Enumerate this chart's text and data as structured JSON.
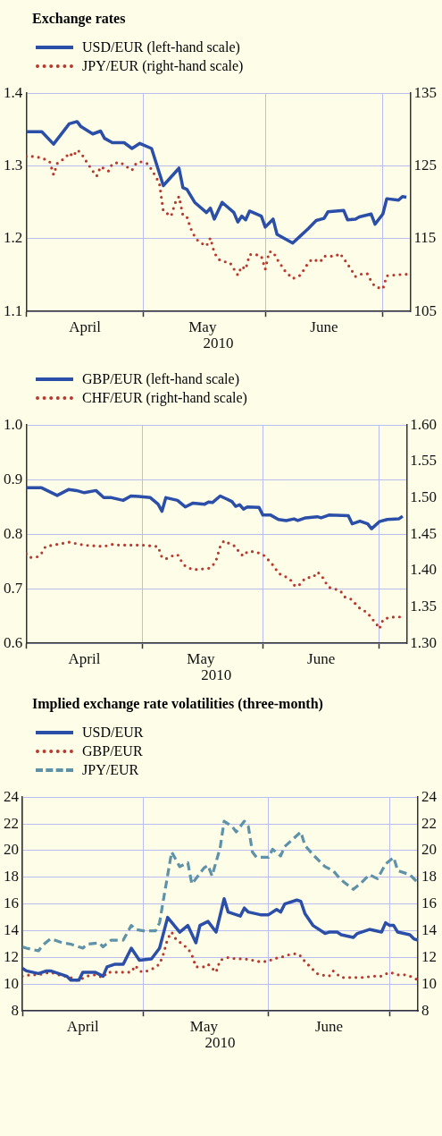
{
  "chart_data": [
    {
      "type": "line",
      "title": "Exchange rates",
      "xlabel": "2010",
      "legend": "top left",
      "grid": true,
      "xlim": [
        "2010-04-01",
        "2010-07-08"
      ],
      "xticks": [
        {
          "value": "2010-04-01",
          "label": null
        },
        {
          "value": "2010-04-16",
          "label": "April"
        },
        {
          "value": "2010-05-01",
          "label": null
        },
        {
          "value": "2010-05-16",
          "label": "May"
        },
        {
          "value": "2010-06-01",
          "label": null
        },
        {
          "value": "2010-06-16",
          "label": "June"
        },
        {
          "value": "2010-07-01",
          "label": null
        }
      ],
      "ylim": [
        1.1,
        1.4
      ],
      "yticks": [
        1.1,
        1.2,
        1.3,
        1.4
      ],
      "y2lim": [
        105,
        135
      ],
      "y2ticks": [
        105,
        115,
        125,
        135
      ],
      "series": [
        {
          "name": "USD/EUR (left-hand scale)",
          "color": "#2b4fa8",
          "line_style": "solid",
          "x": [
            "2010-04-01",
            "2010-04-05",
            "2010-04-08",
            "2010-04-12",
            "2010-04-14",
            "2010-04-15",
            "2010-04-18",
            "2010-04-20",
            "2010-04-21",
            "2010-04-23",
            "2010-04-26",
            "2010-04-28",
            "2010-04-30",
            "2010-05-03",
            "2010-05-06",
            "2010-05-10",
            "2010-05-11",
            "2010-05-12",
            "2010-05-14",
            "2010-05-17",
            "2010-05-18",
            "2010-05-19",
            "2010-05-21",
            "2010-05-24",
            "2010-05-25",
            "2010-05-26",
            "2010-05-27",
            "2010-05-28",
            "2010-05-31",
            "2010-06-01",
            "2010-06-03",
            "2010-06-04",
            "2010-06-08",
            "2010-06-10",
            "2010-06-12",
            "2010-06-14",
            "2010-06-16",
            "2010-06-17",
            "2010-06-21",
            "2010-06-22",
            "2010-06-24",
            "2010-06-25",
            "2010-06-28",
            "2010-06-29",
            "2010-07-01",
            "2010-07-02",
            "2010-07-05",
            "2010-07-06",
            "2010-07-07"
          ],
          "values": [
            1.347,
            1.347,
            1.33,
            1.358,
            1.361,
            1.354,
            1.344,
            1.348,
            1.338,
            1.332,
            1.332,
            1.324,
            1.331,
            1.324,
            1.273,
            1.297,
            1.27,
            1.268,
            1.25,
            1.236,
            1.242,
            1.227,
            1.25,
            1.236,
            1.223,
            1.231,
            1.226,
            1.238,
            1.231,
            1.216,
            1.227,
            1.206,
            1.194,
            1.204,
            1.214,
            1.225,
            1.228,
            1.237,
            1.239,
            1.226,
            1.227,
            1.23,
            1.234,
            1.22,
            1.234,
            1.255,
            1.253,
            1.258,
            1.257
          ]
        },
        {
          "name": "JPY/EUR (right-hand scale)",
          "color": "#b8392e",
          "line_style": "dotted",
          "axis": "y2",
          "x": [
            "2010-04-01",
            "2010-04-03",
            "2010-04-05",
            "2010-04-07",
            "2010-04-08",
            "2010-04-09",
            "2010-04-11",
            "2010-04-12",
            "2010-04-13",
            "2010-04-14",
            "2010-04-15",
            "2010-04-16",
            "2010-04-17",
            "2010-04-18",
            "2010-04-19",
            "2010-04-20",
            "2010-04-22",
            "2010-04-23",
            "2010-04-25",
            "2010-04-28",
            "2010-04-29",
            "2010-04-30",
            "2010-05-02",
            "2010-05-03",
            "2010-05-04",
            "2010-05-05",
            "2010-05-06",
            "2010-05-08",
            "2010-05-09",
            "2010-05-10",
            "2010-05-11",
            "2010-05-12",
            "2010-05-13",
            "2010-05-14",
            "2010-05-15",
            "2010-05-17",
            "2010-05-18",
            "2010-05-19",
            "2010-05-20",
            "2010-05-21",
            "2010-05-23",
            "2010-05-25",
            "2010-05-26",
            "2010-05-27",
            "2010-05-28",
            "2010-05-29",
            "2010-05-31",
            "2010-06-01",
            "2010-06-02",
            "2010-06-03",
            "2010-06-04",
            "2010-06-06",
            "2010-06-08",
            "2010-06-10",
            "2010-06-12",
            "2010-06-13",
            "2010-06-15",
            "2010-06-16",
            "2010-06-19",
            "2010-06-20",
            "2010-06-21",
            "2010-06-23",
            "2010-06-24",
            "2010-06-25",
            "2010-06-27",
            "2010-06-28",
            "2010-06-29",
            "2010-07-01",
            "2010-07-02",
            "2010-07-04",
            "2010-07-06",
            "2010-07-07"
          ],
          "values": [
            126.3,
            126.3,
            126.1,
            125.6,
            123.8,
            125.4,
            126.1,
            126.8,
            126.3,
            127.2,
            126.8,
            125.9,
            125.1,
            124.3,
            123.6,
            124.9,
            124.3,
            125.3,
            125.5,
            124.4,
            125.3,
            125.6,
            125.3,
            124.5,
            123.6,
            122.6,
            118.8,
            118.1,
            119.9,
            120.8,
            118.2,
            118.0,
            116.4,
            115.3,
            114.6,
            114.0,
            115.1,
            113.1,
            112.2,
            111.9,
            111.7,
            110.0,
            111.2,
            110.8,
            112.8,
            112.9,
            112.6,
            110.8,
            113.2,
            113.2,
            112.2,
            110.6,
            109.5,
            110.0,
            111.7,
            112.2,
            111.8,
            112.6,
            112.6,
            113.0,
            112.3,
            110.7,
            109.8,
            110.1,
            110.2,
            109.2,
            108.4,
            108.1,
            109.9,
            110.0,
            110.1,
            110.1
          ]
        }
      ]
    },
    {
      "type": "line",
      "xlabel": "2010",
      "legend": "top left",
      "grid": true,
      "xlim": [
        "2010-04-01",
        "2010-07-08"
      ],
      "xticks": [
        {
          "value": "2010-04-01",
          "label": null
        },
        {
          "value": "2010-04-16",
          "label": "April"
        },
        {
          "value": "2010-05-01",
          "label": null
        },
        {
          "value": "2010-05-16",
          "label": "May"
        },
        {
          "value": "2010-06-01",
          "label": null
        },
        {
          "value": "2010-06-16",
          "label": "June"
        },
        {
          "value": "2010-07-01",
          "label": null
        }
      ],
      "ylim": [
        0.6,
        1.0
      ],
      "yticks": [
        0.6,
        0.7,
        0.8,
        0.9,
        {
          "value": 1.0,
          "label": "1.0"
        }
      ],
      "y2lim": [
        1.3,
        1.6
      ],
      "y2ticks": [
        {
          "value": 1.3,
          "label": "1.30"
        },
        {
          "value": 1.35,
          "label": "1.35"
        },
        {
          "value": 1.4,
          "label": "1.40"
        },
        {
          "value": 1.45,
          "label": "1.45"
        },
        {
          "value": 1.5,
          "label": "1.50"
        },
        {
          "value": 1.55,
          "label": "1.55"
        },
        {
          "value": 1.6,
          "label": "1.60"
        }
      ],
      "series": [
        {
          "name": "GBP/EUR (left-hand scale)",
          "color": "#2b4fa8",
          "line_style": "solid",
          "x": [
            "2010-04-01",
            "2010-04-05",
            "2010-04-09",
            "2010-04-12",
            "2010-04-14",
            "2010-04-16",
            "2010-04-19",
            "2010-04-21",
            "2010-04-23",
            "2010-04-26",
            "2010-04-28",
            "2010-04-30",
            "2010-05-03",
            "2010-05-05",
            "2010-05-06",
            "2010-05-07",
            "2010-05-10",
            "2010-05-12",
            "2010-05-14",
            "2010-05-17",
            "2010-05-18",
            "2010-05-19",
            "2010-05-21",
            "2010-05-24",
            "2010-05-25",
            "2010-05-26",
            "2010-05-27",
            "2010-05-28",
            "2010-05-31",
            "2010-06-01",
            "2010-06-03",
            "2010-06-05",
            "2010-06-07",
            "2010-06-09",
            "2010-06-10",
            "2010-06-12",
            "2010-06-15",
            "2010-06-16",
            "2010-06-18",
            "2010-06-23",
            "2010-06-24",
            "2010-06-26",
            "2010-06-28",
            "2010-06-29",
            "2010-07-01",
            "2010-07-03",
            "2010-07-06",
            "2010-07-07"
          ],
          "values": [
            0.885,
            0.885,
            0.871,
            0.882,
            0.88,
            0.876,
            0.88,
            0.867,
            0.867,
            0.862,
            0.87,
            0.869,
            0.867,
            0.855,
            0.842,
            0.867,
            0.862,
            0.85,
            0.857,
            0.855,
            0.859,
            0.858,
            0.87,
            0.86,
            0.851,
            0.854,
            0.846,
            0.85,
            0.849,
            0.835,
            0.835,
            0.827,
            0.825,
            0.828,
            0.825,
            0.83,
            0.832,
            0.83,
            0.835,
            0.834,
            0.819,
            0.824,
            0.819,
            0.81,
            0.823,
            0.827,
            0.828,
            0.833
          ]
        },
        {
          "name": "CHF/EUR (right-hand scale)",
          "color": "#b8392e",
          "line_style": "dotted",
          "axis": "y2",
          "x": [
            "2010-04-01",
            "2010-04-02",
            "2010-04-04",
            "2010-04-05",
            "2010-04-06",
            "2010-04-08",
            "2010-04-10",
            "2010-04-12",
            "2010-04-14",
            "2010-04-16",
            "2010-04-18",
            "2010-04-19",
            "2010-04-21",
            "2010-04-23",
            "2010-04-25",
            "2010-04-27",
            "2010-04-29",
            "2010-05-01",
            "2010-05-03",
            "2010-05-05",
            "2010-05-06",
            "2010-05-07",
            "2010-05-09",
            "2010-05-10",
            "2010-05-11",
            "2010-05-12",
            "2010-05-14",
            "2010-05-16",
            "2010-05-18",
            "2010-05-19",
            "2010-05-20",
            "2010-05-21",
            "2010-05-22",
            "2010-05-23",
            "2010-05-25",
            "2010-05-26",
            "2010-05-27",
            "2010-05-28",
            "2010-05-30",
            "2010-06-01",
            "2010-06-02",
            "2010-06-04",
            "2010-06-05",
            "2010-06-06",
            "2010-06-08",
            "2010-06-09",
            "2010-06-10",
            "2010-06-12",
            "2010-06-14",
            "2010-06-15",
            "2010-06-16",
            "2010-06-17",
            "2010-06-18",
            "2010-06-20",
            "2010-06-21",
            "2010-06-22",
            "2010-06-24",
            "2010-06-25",
            "2010-06-26",
            "2010-06-28",
            "2010-06-29",
            "2010-06-30",
            "2010-07-01",
            "2010-07-02",
            "2010-07-04",
            "2010-07-06",
            "2010-07-07"
          ],
          "values": [
            1.423,
            1.418,
            1.419,
            1.424,
            1.433,
            1.435,
            1.437,
            1.439,
            1.437,
            1.435,
            1.434,
            1.434,
            1.433,
            1.436,
            1.435,
            1.435,
            1.435,
            1.435,
            1.434,
            1.433,
            1.418,
            1.416,
            1.421,
            1.422,
            1.413,
            1.406,
            1.401,
            1.402,
            1.403,
            1.406,
            1.415,
            1.433,
            1.441,
            1.438,
            1.433,
            1.424,
            1.42,
            1.426,
            1.426,
            1.422,
            1.417,
            1.405,
            1.396,
            1.394,
            1.388,
            1.38,
            1.378,
            1.39,
            1.391,
            1.398,
            1.394,
            1.385,
            1.377,
            1.374,
            1.372,
            1.364,
            1.36,
            1.353,
            1.348,
            1.342,
            1.334,
            1.329,
            1.32,
            1.333,
            1.336,
            1.336,
            1.337
          ]
        }
      ]
    },
    {
      "type": "line",
      "title": "Implied exchange rate volatilities (three-month)",
      "xlabel": "2010",
      "legend": "top left",
      "grid": true,
      "xlim": [
        "2010-04-01",
        "2010-07-08"
      ],
      "xticks": [
        {
          "value": "2010-04-01",
          "label": null
        },
        {
          "value": "2010-04-16",
          "label": "April"
        },
        {
          "value": "2010-05-01",
          "label": null
        },
        {
          "value": "2010-05-16",
          "label": "May"
        },
        {
          "value": "2010-06-01",
          "label": null
        },
        {
          "value": "2010-06-16",
          "label": "June"
        },
        {
          "value": "2010-07-01",
          "label": null
        }
      ],
      "ylim": [
        8,
        24
      ],
      "yticks": [
        8,
        10,
        12,
        14,
        16,
        18,
        20,
        22,
        24
      ],
      "y2lim": [
        8,
        24
      ],
      "y2ticks": [
        8,
        10,
        12,
        14,
        16,
        18,
        20,
        22,
        24
      ],
      "series": [
        {
          "name": "USD/EUR",
          "color": "#2b4fa8",
          "line_style": "solid",
          "x": [
            "2010-04-01",
            "2010-04-02",
            "2010-04-05",
            "2010-04-07",
            "2010-04-08",
            "2010-04-10",
            "2010-04-12",
            "2010-04-13",
            "2010-04-15",
            "2010-04-16",
            "2010-04-19",
            "2010-04-21",
            "2010-04-22",
            "2010-04-24",
            "2010-04-26",
            "2010-04-28",
            "2010-04-30",
            "2010-05-03",
            "2010-05-05",
            "2010-05-07",
            "2010-05-10",
            "2010-05-12",
            "2010-05-14",
            "2010-05-15",
            "2010-05-17",
            "2010-05-19",
            "2010-05-21",
            "2010-05-22",
            "2010-05-25",
            "2010-05-26",
            "2010-05-27",
            "2010-05-30",
            "2010-06-01",
            "2010-06-03",
            "2010-06-04",
            "2010-06-05",
            "2010-06-08",
            "2010-06-09",
            "2010-06-10",
            "2010-06-12",
            "2010-06-15",
            "2010-06-16",
            "2010-06-18",
            "2010-06-19",
            "2010-06-22",
            "2010-06-23",
            "2010-06-26",
            "2010-06-29",
            "2010-06-30",
            "2010-07-01",
            "2010-07-02",
            "2010-07-03",
            "2010-07-06",
            "2010-07-07",
            "2010-07-08"
          ],
          "values": [
            11.2,
            11.0,
            10.8,
            11.0,
            11.0,
            10.8,
            10.6,
            10.3,
            10.3,
            10.9,
            10.9,
            10.6,
            11.3,
            11.5,
            11.5,
            12.7,
            11.8,
            11.9,
            12.7,
            15.0,
            13.9,
            14.4,
            13.1,
            14.4,
            14.7,
            13.9,
            16.4,
            15.4,
            15.1,
            15.7,
            15.4,
            15.2,
            15.2,
            15.6,
            15.4,
            16.0,
            16.3,
            16.2,
            15.3,
            14.4,
            13.8,
            13.9,
            13.9,
            13.7,
            13.5,
            13.8,
            14.1,
            13.9,
            14.6,
            14.4,
            14.4,
            13.9,
            13.7,
            13.4,
            13.3
          ]
        },
        {
          "name": "GBP/EUR",
          "color": "#b8392e",
          "line_style": "dotted",
          "x": [
            "2010-04-01",
            "2010-04-03",
            "2010-04-05",
            "2010-04-08",
            "2010-04-10",
            "2010-04-13",
            "2010-04-14",
            "2010-04-15",
            "2010-04-17",
            "2010-04-19",
            "2010-04-21",
            "2010-04-22",
            "2010-04-25",
            "2010-04-28",
            "2010-04-29",
            "2010-04-30",
            "2010-05-01",
            "2010-05-03",
            "2010-05-05",
            "2010-05-06",
            "2010-05-07",
            "2010-05-08",
            "2010-05-09",
            "2010-05-11",
            "2010-05-12",
            "2010-05-13",
            "2010-05-14",
            "2010-05-16",
            "2010-05-17",
            "2010-05-19",
            "2010-05-20",
            "2010-05-22",
            "2010-05-24",
            "2010-05-26",
            "2010-05-28",
            "2010-05-29",
            "2010-06-01",
            "2010-06-02",
            "2010-06-04",
            "2010-06-06",
            "2010-06-08",
            "2010-06-09",
            "2010-06-10",
            "2010-06-13",
            "2010-06-14",
            "2010-06-16",
            "2010-06-17",
            "2010-06-19",
            "2010-06-20",
            "2010-06-24",
            "2010-06-27",
            "2010-06-29",
            "2010-07-01",
            "2010-07-03",
            "2010-07-05",
            "2010-07-07",
            "2010-07-08"
          ],
          "values": [
            10.6,
            10.7,
            10.7,
            10.9,
            10.7,
            10.5,
            10.3,
            10.3,
            10.6,
            10.7,
            10.5,
            10.9,
            10.9,
            10.9,
            11.4,
            11.0,
            10.9,
            11.1,
            11.5,
            12.3,
            13.4,
            13.9,
            13.4,
            12.9,
            12.7,
            12.2,
            11.3,
            11.3,
            11.5,
            10.9,
            11.8,
            12.0,
            11.9,
            11.9,
            11.8,
            11.7,
            11.7,
            11.9,
            12.0,
            12.2,
            12.3,
            12.1,
            11.7,
            10.8,
            10.7,
            10.6,
            11.0,
            10.5,
            10.5,
            10.5,
            10.6,
            10.6,
            10.9,
            10.7,
            10.7,
            10.5,
            10.3
          ]
        },
        {
          "name": "JPY/EUR",
          "color": "#5e92a8",
          "line_style": "dashed",
          "x": [
            "2010-04-01",
            "2010-04-02",
            "2010-04-05",
            "2010-04-06",
            "2010-04-08",
            "2010-04-11",
            "2010-04-13",
            "2010-04-14",
            "2010-04-16",
            "2010-04-17",
            "2010-04-20",
            "2010-04-21",
            "2010-04-23",
            "2010-04-26",
            "2010-04-28",
            "2010-04-29",
            "2010-05-01",
            "2010-05-04",
            "2010-05-05",
            "2010-05-06",
            "2010-05-08",
            "2010-05-10",
            "2010-05-12",
            "2010-05-13",
            "2010-05-15",
            "2010-05-16",
            "2010-05-17",
            "2010-05-18",
            "2010-05-20",
            "2010-05-21",
            "2010-05-23",
            "2010-05-24",
            "2010-05-26",
            "2010-05-27",
            "2010-05-28",
            "2010-05-29",
            "2010-06-01",
            "2010-06-02",
            "2010-06-04",
            "2010-06-05",
            "2010-06-09",
            "2010-06-10",
            "2010-06-12",
            "2010-06-15",
            "2010-06-17",
            "2010-06-19",
            "2010-06-22",
            "2010-06-24",
            "2010-06-26",
            "2010-06-28",
            "2010-06-30",
            "2010-07-02",
            "2010-07-03",
            "2010-07-06",
            "2010-07-08"
          ],
          "values": [
            12.8,
            12.7,
            12.5,
            12.9,
            13.4,
            13.1,
            13.0,
            12.9,
            12.7,
            13.0,
            13.1,
            12.8,
            13.3,
            13.3,
            14.4,
            14.1,
            14.0,
            14.0,
            14.6,
            16.4,
            19.9,
            18.8,
            19.1,
            17.5,
            18.3,
            18.7,
            18.9,
            18.1,
            20.2,
            22.2,
            21.8,
            21.4,
            22.2,
            21.8,
            19.9,
            19.5,
            19.5,
            20.1,
            19.6,
            20.3,
            21.4,
            20.4,
            19.7,
            18.8,
            18.5,
            17.8,
            17.1,
            17.6,
            18.2,
            17.9,
            19.0,
            19.5,
            18.5,
            18.2,
            17.6
          ]
        }
      ]
    }
  ]
}
